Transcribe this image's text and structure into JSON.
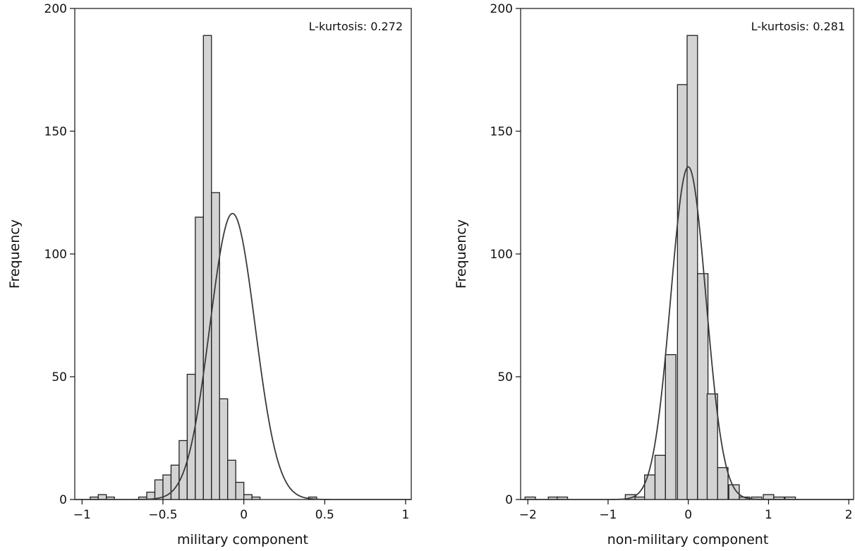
{
  "chart_data": [
    {
      "type": "bar",
      "subtype": "histogram-with-normal-curve",
      "xlabel": "military component",
      "ylabel": "Frequency",
      "xlim": [
        -1,
        1
      ],
      "ylim": [
        0,
        200
      ],
      "xticks": [
        -1,
        -0.5,
        0,
        0.5,
        1
      ],
      "xtick_labels": [
        "−1",
        "−0.5",
        "0",
        "0.5",
        "1"
      ],
      "yticks": [
        0,
        50,
        100,
        150,
        200
      ],
      "ytick_labels": [
        "0",
        "50",
        "100",
        "150",
        "200"
      ],
      "annotation": "L-kurtosis: 0.272",
      "bin_width": 0.05,
      "bins": [
        {
          "x": -0.925,
          "count": 1
        },
        {
          "x": -0.875,
          "count": 2
        },
        {
          "x": -0.825,
          "count": 1
        },
        {
          "x": -0.625,
          "count": 1
        },
        {
          "x": -0.575,
          "count": 3
        },
        {
          "x": -0.525,
          "count": 8
        },
        {
          "x": -0.475,
          "count": 10
        },
        {
          "x": -0.425,
          "count": 14
        },
        {
          "x": -0.375,
          "count": 24
        },
        {
          "x": -0.325,
          "count": 51
        },
        {
          "x": -0.275,
          "count": 115
        },
        {
          "x": -0.225,
          "count": 189
        },
        {
          "x": -0.175,
          "count": 125
        },
        {
          "x": -0.125,
          "count": 41
        },
        {
          "x": -0.075,
          "count": 16
        },
        {
          "x": -0.025,
          "count": 7
        },
        {
          "x": 0.025,
          "count": 2
        },
        {
          "x": 0.075,
          "count": 1
        },
        {
          "x": 0.425,
          "count": 1
        }
      ],
      "normal_curve": {
        "mean": -0.07,
        "sd": 0.14,
        "peak": 116.5
      },
      "colors": {
        "bar_fill": "#d3d3d3",
        "bar_stroke": "#222222",
        "curve": "#3a3a3a"
      }
    },
    {
      "type": "bar",
      "subtype": "histogram-with-normal-curve",
      "xlabel": "non-military component",
      "ylabel": "Frequency",
      "xlim": [
        -2,
        2
      ],
      "ylim": [
        0,
        200
      ],
      "xticks": [
        -2,
        -1,
        0,
        1,
        2
      ],
      "xtick_labels": [
        "−2",
        "−1",
        "0",
        "1",
        "2"
      ],
      "yticks": [
        0,
        50,
        100,
        150,
        200
      ],
      "ytick_labels": [
        "0",
        "50",
        "100",
        "150",
        "200"
      ],
      "annotation": "L-kurtosis: 0.281",
      "bin_width": 0.13,
      "bins": [
        {
          "x": -1.97,
          "count": 1
        },
        {
          "x": -1.68,
          "count": 1
        },
        {
          "x": -1.57,
          "count": 1
        },
        {
          "x": -0.72,
          "count": 2
        },
        {
          "x": -0.6,
          "count": 1
        },
        {
          "x": -0.48,
          "count": 10
        },
        {
          "x": -0.35,
          "count": 18
        },
        {
          "x": -0.22,
          "count": 59
        },
        {
          "x": -0.07,
          "count": 169
        },
        {
          "x": 0.05,
          "count": 189
        },
        {
          "x": 0.18,
          "count": 92
        },
        {
          "x": 0.3,
          "count": 43
        },
        {
          "x": 0.43,
          "count": 13
        },
        {
          "x": 0.57,
          "count": 6
        },
        {
          "x": 0.7,
          "count": 1
        },
        {
          "x": 0.85,
          "count": 1
        },
        {
          "x": 1.0,
          "count": 2
        },
        {
          "x": 1.13,
          "count": 1
        },
        {
          "x": 1.27,
          "count": 1
        }
      ],
      "normal_curve": {
        "mean": 0.0,
        "sd": 0.22,
        "peak": 135.5
      },
      "colors": {
        "bar_fill": "#d3d3d3",
        "bar_stroke": "#222222",
        "curve": "#3a3a3a"
      }
    }
  ]
}
